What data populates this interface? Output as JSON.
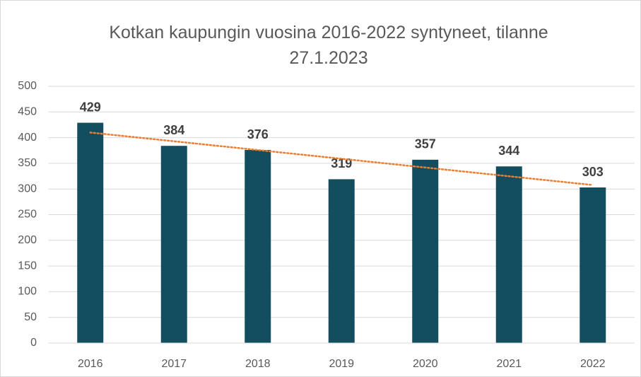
{
  "chart_data": {
    "type": "bar",
    "title": "Kotkan kaupungin vuosina 2016-2022 syntyneet, tilanne 27.1.2023",
    "categories": [
      "2016",
      "2017",
      "2018",
      "2019",
      "2020",
      "2021",
      "2022"
    ],
    "values": [
      429,
      384,
      376,
      319,
      357,
      344,
      303
    ],
    "color": "#124e60",
    "ylim": [
      0,
      500
    ],
    "yticks": [
      0,
      50,
      100,
      150,
      200,
      250,
      300,
      350,
      400,
      450,
      500
    ],
    "grid": true,
    "data_labels": true,
    "trendline": {
      "type": "linear",
      "color": "#ed7d31"
    }
  }
}
